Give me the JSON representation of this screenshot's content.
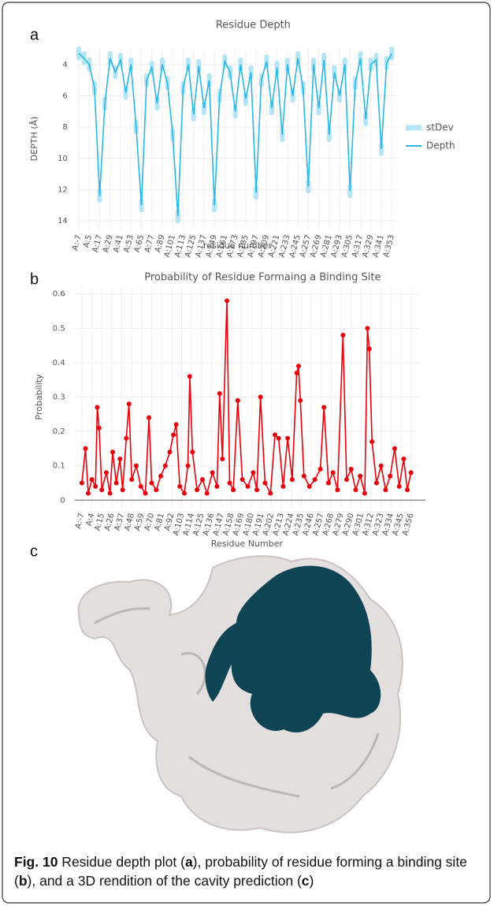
{
  "chart_data": [
    {
      "type": "line",
      "panel": "a",
      "title": "Residue Depth",
      "xlabel": "residue number",
      "ylabel": "DEPTH (Å)",
      "x": [
        -7,
        -1,
        5,
        11,
        17,
        23,
        29,
        35,
        41,
        47,
        53,
        59,
        65,
        71,
        77,
        83,
        89,
        95,
        101,
        107,
        113,
        119,
        125,
        131,
        137,
        143,
        149,
        155,
        161,
        167,
        173,
        179,
        185,
        191,
        197,
        203,
        209,
        215,
        221,
        227,
        233,
        239,
        245,
        251,
        257,
        263,
        269,
        275,
        281,
        287,
        293,
        299,
        305,
        311,
        317,
        323,
        329,
        335,
        341,
        347,
        353
      ],
      "series": [
        {
          "name": "Depth",
          "color": "#29b6e8",
          "values": [
            3.3,
            3.6,
            4.0,
            5.5,
            12.4,
            6.5,
            3.6,
            4.5,
            3.7,
            5.8,
            4.0,
            8.0,
            13.0,
            5.0,
            4.2,
            6.5,
            4.0,
            5.2,
            8.5,
            13.7,
            5.5,
            4.0,
            7.2,
            4.1,
            6.8,
            5.0,
            13.0,
            6.0,
            3.8,
            4.5,
            7.0,
            4.0,
            6.2,
            4.5,
            12.2,
            5.0,
            3.8,
            6.8,
            4.2,
            8.5,
            4.0,
            6.0,
            3.6,
            5.5,
            11.8,
            4.0,
            6.8,
            3.7,
            8.5,
            4.5,
            6.0,
            4.0,
            12.1,
            5.2,
            3.6,
            7.5,
            4.0,
            3.7,
            9.4,
            3.9,
            3.3
          ]
        },
        {
          "name": "stDev",
          "color": "#b3e5f5",
          "values": [
            0.3,
            0.3,
            0.3,
            0.3,
            0.3,
            0.3,
            0.3,
            0.3,
            0.3,
            0.3,
            0.3,
            0.3,
            0.3,
            0.3,
            0.3,
            0.3,
            0.3,
            0.3,
            0.3,
            0.3,
            0.3,
            0.3,
            0.3,
            0.3,
            0.3,
            0.3,
            0.3,
            0.3,
            0.3,
            0.3,
            0.3,
            0.3,
            0.3,
            0.3,
            0.3,
            0.3,
            0.3,
            0.3,
            0.3,
            0.3,
            0.3,
            0.3,
            0.3,
            0.3,
            0.3,
            0.3,
            0.3,
            0.3,
            0.3,
            0.3,
            0.3,
            0.3,
            0.3,
            0.3,
            0.3,
            0.3,
            0.3,
            0.3,
            0.3,
            0.3,
            0.3
          ]
        }
      ],
      "xlim": [
        -9,
        360
      ],
      "xticks": [
        {
          "value": -7,
          "label": "A:-7"
        },
        {
          "value": 5,
          "label": "A:5"
        },
        {
          "value": 17,
          "label": "A:17"
        },
        {
          "value": 29,
          "label": "A:29"
        },
        {
          "value": 41,
          "label": "A:41"
        },
        {
          "value": 53,
          "label": "A:53"
        },
        {
          "value": 65,
          "label": "A:65"
        },
        {
          "value": 77,
          "label": "A:77"
        },
        {
          "value": 89,
          "label": "A:89"
        },
        {
          "value": 101,
          "label": "A:101"
        },
        {
          "value": 113,
          "label": "A:113"
        },
        {
          "value": 125,
          "label": "A:125"
        },
        {
          "value": 137,
          "label": "A:137"
        },
        {
          "value": 149,
          "label": "A:149"
        },
        {
          "value": 161,
          "label": "A:161"
        },
        {
          "value": 173,
          "label": "A:173"
        },
        {
          "value": 185,
          "label": "A:185"
        },
        {
          "value": 197,
          "label": "A:197"
        },
        {
          "value": 209,
          "label": "A:209"
        },
        {
          "value": 221,
          "label": "A:221"
        },
        {
          "value": 233,
          "label": "A:233"
        },
        {
          "value": 245,
          "label": "A:245"
        },
        {
          "value": 257,
          "label": "A:257"
        },
        {
          "value": 269,
          "label": "A:269"
        },
        {
          "value": 281,
          "label": "A:281"
        },
        {
          "value": 293,
          "label": "A:293"
        },
        {
          "value": 305,
          "label": "A:305"
        },
        {
          "value": 317,
          "label": "A:317"
        },
        {
          "value": 329,
          "label": "A:329"
        },
        {
          "value": 341,
          "label": "A:341"
        },
        {
          "value": 353,
          "label": "A:353"
        }
      ],
      "ylim": [
        3,
        14.5
      ],
      "yticks": [
        4,
        6,
        8,
        10,
        12,
        14
      ],
      "y_reversed": true,
      "grid": true,
      "legend": "right"
    },
    {
      "type": "line",
      "panel": "b",
      "title": "Probability of Residue Formaing a Binding Site",
      "xlabel": "Residue Number",
      "ylabel": "Probability",
      "markers": true,
      "x": [
        -7,
        -3,
        0,
        4,
        8,
        10,
        12,
        15,
        20,
        24,
        27,
        31,
        35,
        38,
        42,
        45,
        48,
        53,
        58,
        63,
        67,
        70,
        75,
        80,
        85,
        90,
        94,
        97,
        101,
        106,
        110,
        112,
        115,
        120,
        126,
        131,
        137,
        142,
        145,
        148,
        153,
        156,
        160,
        165,
        170,
        176,
        182,
        186,
        190,
        195,
        201,
        206,
        210,
        215,
        220,
        225,
        230,
        232,
        234,
        238,
        244,
        250,
        256,
        260,
        265,
        270,
        275,
        281,
        285,
        290,
        295,
        300,
        305,
        308,
        310,
        313,
        318,
        323,
        328,
        333,
        338,
        343,
        348,
        352,
        356
      ],
      "series": [
        {
          "name": "Probability",
          "color": "#e8000b",
          "values": [
            0.05,
            0.15,
            0.02,
            0.06,
            0.04,
            0.27,
            0.21,
            0.03,
            0.08,
            0.02,
            0.14,
            0.05,
            0.12,
            0.03,
            0.18,
            0.28,
            0.06,
            0.1,
            0.04,
            0.02,
            0.24,
            0.05,
            0.03,
            0.07,
            0.1,
            0.14,
            0.19,
            0.22,
            0.04,
            0.02,
            0.1,
            0.36,
            0.14,
            0.03,
            0.06,
            0.02,
            0.08,
            0.04,
            0.31,
            0.12,
            0.58,
            0.05,
            0.03,
            0.29,
            0.06,
            0.04,
            0.08,
            0.03,
            0.3,
            0.05,
            0.02,
            0.19,
            0.18,
            0.04,
            0.18,
            0.06,
            0.37,
            0.39,
            0.29,
            0.07,
            0.04,
            0.06,
            0.09,
            0.27,
            0.05,
            0.08,
            0.03,
            0.48,
            0.06,
            0.09,
            0.03,
            0.07,
            0.02,
            0.5,
            0.44,
            0.17,
            0.05,
            0.1,
            0.03,
            0.07,
            0.15,
            0.04,
            0.12,
            0.03,
            0.08
          ]
        }
      ],
      "xlim": [
        -15,
        365
      ],
      "xticks": [
        {
          "value": -7,
          "label": "A:-7"
        },
        {
          "value": 4,
          "label": "A:4"
        },
        {
          "value": 15,
          "label": "A:15"
        },
        {
          "value": 26,
          "label": "A:26"
        },
        {
          "value": 37,
          "label": "A:37"
        },
        {
          "value": 48,
          "label": "A:48"
        },
        {
          "value": 59,
          "label": "A:59"
        },
        {
          "value": 70,
          "label": "A:70"
        },
        {
          "value": 81,
          "label": "A:81"
        },
        {
          "value": 92,
          "label": "A:92"
        },
        {
          "value": 103,
          "label": "A:103"
        },
        {
          "value": 114,
          "label": "A:114"
        },
        {
          "value": 125,
          "label": "A:125"
        },
        {
          "value": 136,
          "label": "A:136"
        },
        {
          "value": 147,
          "label": "A:147"
        },
        {
          "value": 158,
          "label": "A:158"
        },
        {
          "value": 169,
          "label": "A:169"
        },
        {
          "value": 180,
          "label": "A:180"
        },
        {
          "value": 191,
          "label": "A:191"
        },
        {
          "value": 202,
          "label": "A:202"
        },
        {
          "value": 213,
          "label": "A:213"
        },
        {
          "value": 224,
          "label": "A:224"
        },
        {
          "value": 235,
          "label": "A:235"
        },
        {
          "value": 246,
          "label": "A:246"
        },
        {
          "value": 257,
          "label": "A:257"
        },
        {
          "value": 268,
          "label": "A:268"
        },
        {
          "value": 279,
          "label": "A:279"
        },
        {
          "value": 290,
          "label": "A:290"
        },
        {
          "value": 301,
          "label": "A:301"
        },
        {
          "value": 312,
          "label": "A:312"
        },
        {
          "value": 323,
          "label": "A:323"
        },
        {
          "value": 334,
          "label": "A:334"
        },
        {
          "value": 345,
          "label": "A:345"
        },
        {
          "value": 356,
          "label": "A:356"
        }
      ],
      "ylim": [
        -0.02,
        0.62
      ],
      "yticks": [
        0,
        0.1,
        0.2,
        0.3,
        0.4,
        0.5,
        0.6
      ],
      "grid": true
    }
  ],
  "image": {
    "panel": "c"
  },
  "caption": {
    "label": "Fig. 10",
    "parts": [
      " Residue depth plot (",
      "a",
      "), probability of residue forming a binding site (",
      "b",
      "), and a 3D rendition of the cavity prediction (",
      "c",
      ")"
    ]
  }
}
